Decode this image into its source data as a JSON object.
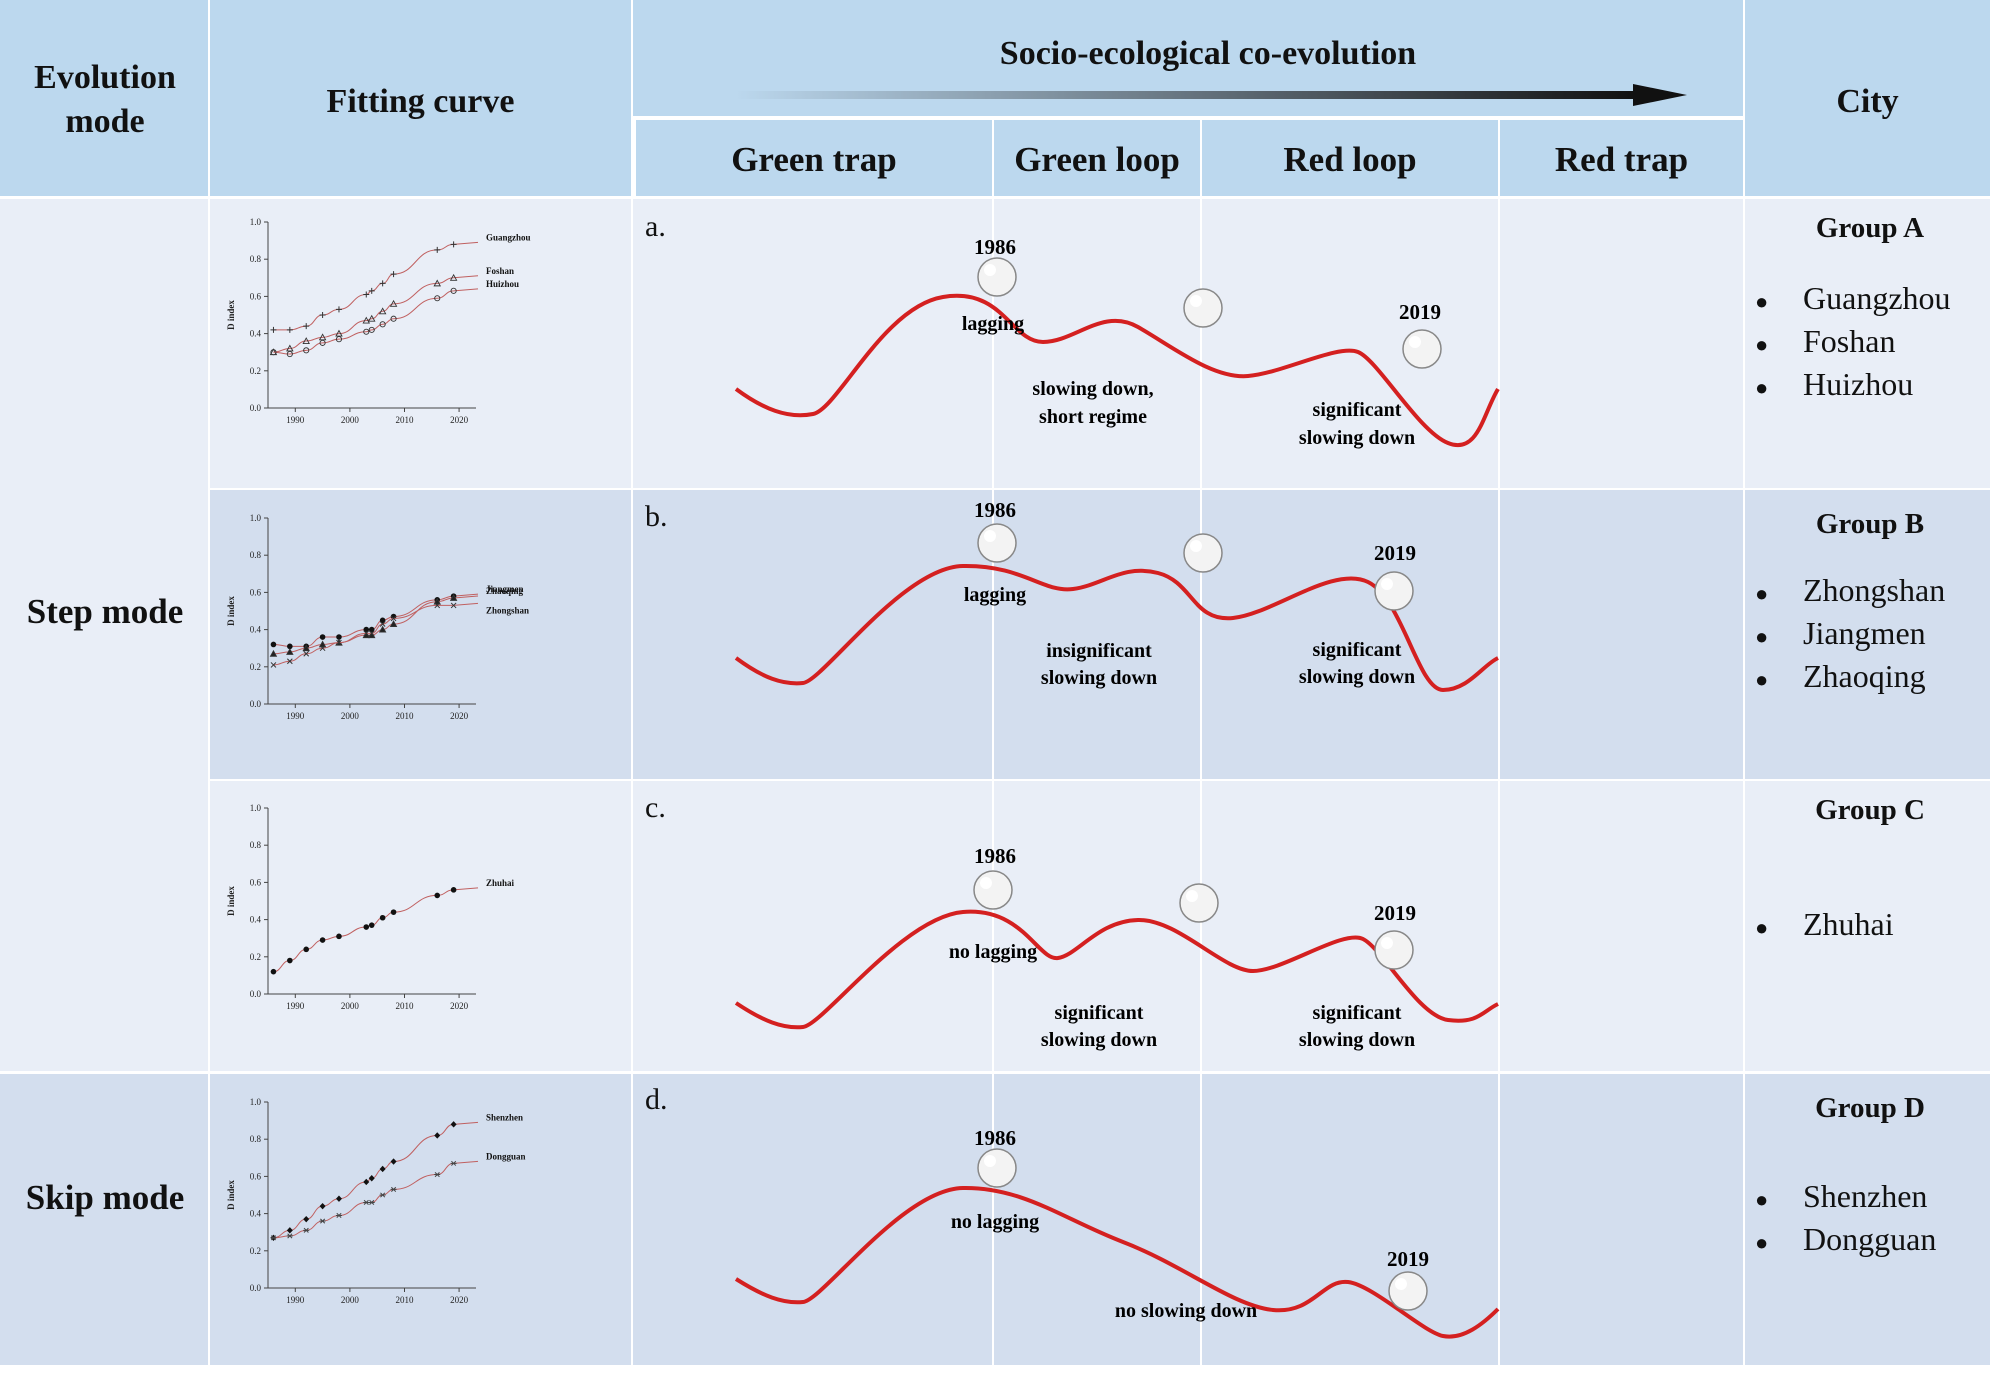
{
  "header": {
    "evolution_mode": "Evolution mode",
    "fitting_curve": "Fitting curve",
    "socio_ecological": "Socio-ecological co-evolution",
    "city": "City",
    "phases": [
      "Green trap",
      "Green loop",
      "Red loop",
      "Red trap"
    ]
  },
  "modes": {
    "step": "Step mode",
    "skip": "Skip mode"
  },
  "axis": {
    "ylabel": "D index",
    "yticks": [
      "0.0",
      "0.2",
      "0.4",
      "0.6",
      "0.8",
      "1.0"
    ],
    "xticks": [
      "1990",
      "2000",
      "2010",
      "2020"
    ]
  },
  "colors": {
    "curve": "#d42020",
    "mini_curve": "#c06060",
    "header_bg": "#bcd8ee",
    "row_light": "#e9eef7",
    "row_dark": "#d3deee"
  },
  "rows": [
    {
      "label": "a.",
      "year_start": "1986",
      "year_end": "2019",
      "lag_text": "lagging",
      "middle_text": [
        "slowing down,",
        "short regime"
      ],
      "right_text": [
        "significant",
        "slowing down"
      ],
      "group": "Group A",
      "cities": [
        "Guangzhou",
        "Foshan",
        "Huizhou"
      ],
      "chart_labels": [
        "Guangzhou",
        "Foshan",
        "Huizhou"
      ]
    },
    {
      "label": "b.",
      "year_start": "1986",
      "year_end": "2019",
      "lag_text": "lagging",
      "middle_text": [
        "insignificant",
        "slowing down"
      ],
      "right_text": [
        "significant",
        "slowing down"
      ],
      "group": "Group B",
      "cities": [
        "Zhongshan",
        "Jiangmen",
        "Zhaoqing"
      ],
      "chart_labels": [
        "Jiangmen",
        "Zhaoqing",
        "Zhongshan"
      ]
    },
    {
      "label": "c.",
      "year_start": "1986",
      "year_end": "2019",
      "lag_text": "no lagging",
      "middle_text": [
        "significant",
        "slowing down"
      ],
      "right_text": [
        "significant",
        "slowing down"
      ],
      "group": "Group C",
      "cities": [
        "Zhuhai"
      ],
      "chart_labels": [
        "Zhuhai"
      ]
    },
    {
      "label": "d.",
      "year_start": "1986",
      "year_end": "2019",
      "lag_text": "no lagging",
      "middle_text": [
        "no slowing down"
      ],
      "group": "Group D",
      "cities": [
        "Shenzhen",
        "Dongguan"
      ],
      "chart_labels": [
        "Shenzhen",
        "Dongguan"
      ]
    }
  ],
  "chart_data": [
    {
      "type": "scatter",
      "ylabel": "D index",
      "ylim": [
        0,
        1
      ],
      "xlim": [
        1985,
        2022
      ],
      "series": [
        {
          "name": "Guangzhou",
          "x": [
            1986,
            1989,
            1992,
            1995,
            1998,
            2003,
            2004,
            2006,
            2008,
            2016,
            2019
          ],
          "values": [
            0.42,
            0.42,
            0.44,
            0.5,
            0.53,
            0.61,
            0.63,
            0.67,
            0.72,
            0.85,
            0.88
          ]
        },
        {
          "name": "Foshan",
          "x": [
            1986,
            1989,
            1992,
            1995,
            1998,
            2003,
            2004,
            2006,
            2008,
            2016,
            2019
          ],
          "values": [
            0.3,
            0.32,
            0.36,
            0.38,
            0.4,
            0.47,
            0.48,
            0.52,
            0.56,
            0.67,
            0.7
          ]
        },
        {
          "name": "Huizhou",
          "x": [
            1986,
            1989,
            1992,
            1995,
            1998,
            2003,
            2004,
            2006,
            2008,
            2016,
            2019
          ],
          "values": [
            0.3,
            0.29,
            0.31,
            0.35,
            0.37,
            0.41,
            0.42,
            0.45,
            0.48,
            0.59,
            0.63
          ]
        }
      ]
    },
    {
      "type": "scatter",
      "ylabel": "D index",
      "ylim": [
        0,
        1
      ],
      "xlim": [
        1985,
        2022
      ],
      "series": [
        {
          "name": "Jiangmen",
          "x": [
            1986,
            1989,
            1992,
            1995,
            1998,
            2003,
            2004,
            2006,
            2008,
            2016,
            2019
          ],
          "values": [
            0.32,
            0.31,
            0.31,
            0.36,
            0.36,
            0.4,
            0.4,
            0.45,
            0.47,
            0.56,
            0.58
          ]
        },
        {
          "name": "Zhaoqing",
          "x": [
            1986,
            1989,
            1992,
            1995,
            1998,
            2003,
            2004,
            2006,
            2008,
            2016,
            2019
          ],
          "values": [
            0.27,
            0.28,
            0.3,
            0.32,
            0.33,
            0.37,
            0.37,
            0.4,
            0.43,
            0.55,
            0.57
          ]
        },
        {
          "name": "Zhongshan",
          "x": [
            1986,
            1989,
            1992,
            1995,
            1998,
            2003,
            2004,
            2006,
            2008,
            2016,
            2019
          ],
          "values": [
            0.21,
            0.23,
            0.27,
            0.3,
            0.33,
            0.38,
            0.38,
            0.43,
            0.46,
            0.53,
            0.53
          ]
        }
      ]
    },
    {
      "type": "scatter",
      "ylabel": "D index",
      "ylim": [
        0,
        1
      ],
      "xlim": [
        1985,
        2022
      ],
      "series": [
        {
          "name": "Zhuhai",
          "x": [
            1986,
            1989,
            1992,
            1995,
            1998,
            2003,
            2004,
            2006,
            2008,
            2016,
            2019
          ],
          "values": [
            0.12,
            0.18,
            0.24,
            0.29,
            0.31,
            0.36,
            0.37,
            0.41,
            0.44,
            0.53,
            0.56
          ]
        }
      ]
    },
    {
      "type": "scatter",
      "ylabel": "D index",
      "ylim": [
        0,
        1
      ],
      "xlim": [
        1985,
        2022
      ],
      "series": [
        {
          "name": "Shenzhen",
          "x": [
            1986,
            1989,
            1992,
            1995,
            1998,
            2003,
            2004,
            2006,
            2008,
            2016,
            2019
          ],
          "values": [
            0.27,
            0.31,
            0.37,
            0.44,
            0.48,
            0.57,
            0.59,
            0.64,
            0.68,
            0.82,
            0.88
          ]
        },
        {
          "name": "Dongguan",
          "x": [
            1986,
            1989,
            1992,
            1995,
            1998,
            2003,
            2004,
            2006,
            2008,
            2016,
            2019
          ],
          "values": [
            0.27,
            0.28,
            0.31,
            0.36,
            0.39,
            0.46,
            0.46,
            0.5,
            0.53,
            0.61,
            0.67
          ]
        }
      ]
    }
  ]
}
